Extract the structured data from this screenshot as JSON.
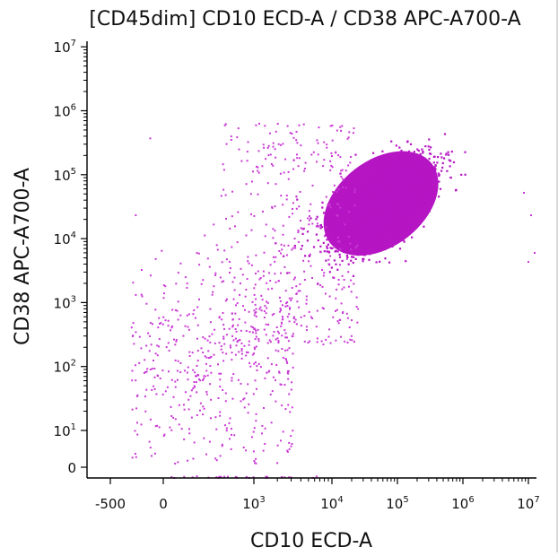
{
  "chart_data": {
    "type": "scatter",
    "title": "[CD45dim] CD10 ECD-A / CD38 APC-A700-A",
    "xlabel": "CD10 ECD-A",
    "ylabel": "CD38 APC-A700-A",
    "x_scale": "biexponential",
    "y_scale": "biexponential",
    "x_ticks": [
      {
        "base": "-500",
        "exp": ""
      },
      {
        "base": "0",
        "exp": ""
      },
      {
        "base": "10",
        "exp": "3"
      },
      {
        "base": "10",
        "exp": "4"
      },
      {
        "base": "10",
        "exp": "5"
      },
      {
        "base": "10",
        "exp": "6"
      },
      {
        "base": "10",
        "exp": "7"
      }
    ],
    "y_ticks": [
      {
        "base": "0",
        "exp": ""
      },
      {
        "base": "10",
        "exp": "1"
      },
      {
        "base": "10",
        "exp": "2"
      },
      {
        "base": "10",
        "exp": "3"
      },
      {
        "base": "10",
        "exp": "4"
      },
      {
        "base": "10",
        "exp": "5"
      },
      {
        "base": "10",
        "exp": "6"
      },
      {
        "base": "10",
        "exp": "7"
      }
    ],
    "xlim": [
      -500,
      10000000
    ],
    "ylim": [
      0,
      10000000
    ],
    "point_color": "#b515c3",
    "sparse_point_color": "#c93ad4",
    "populations": [
      {
        "description": "dense cluster",
        "x_log10_range": [
          4.0,
          6.1
        ],
        "y_log10_range": [
          3.3,
          5.5
        ],
        "center_x": 50000,
        "center_y": 20000
      },
      {
        "description": "scattered events",
        "x_range": [
          -500,
          1000000
        ],
        "y_range": [
          10,
          3000000
        ]
      }
    ]
  }
}
